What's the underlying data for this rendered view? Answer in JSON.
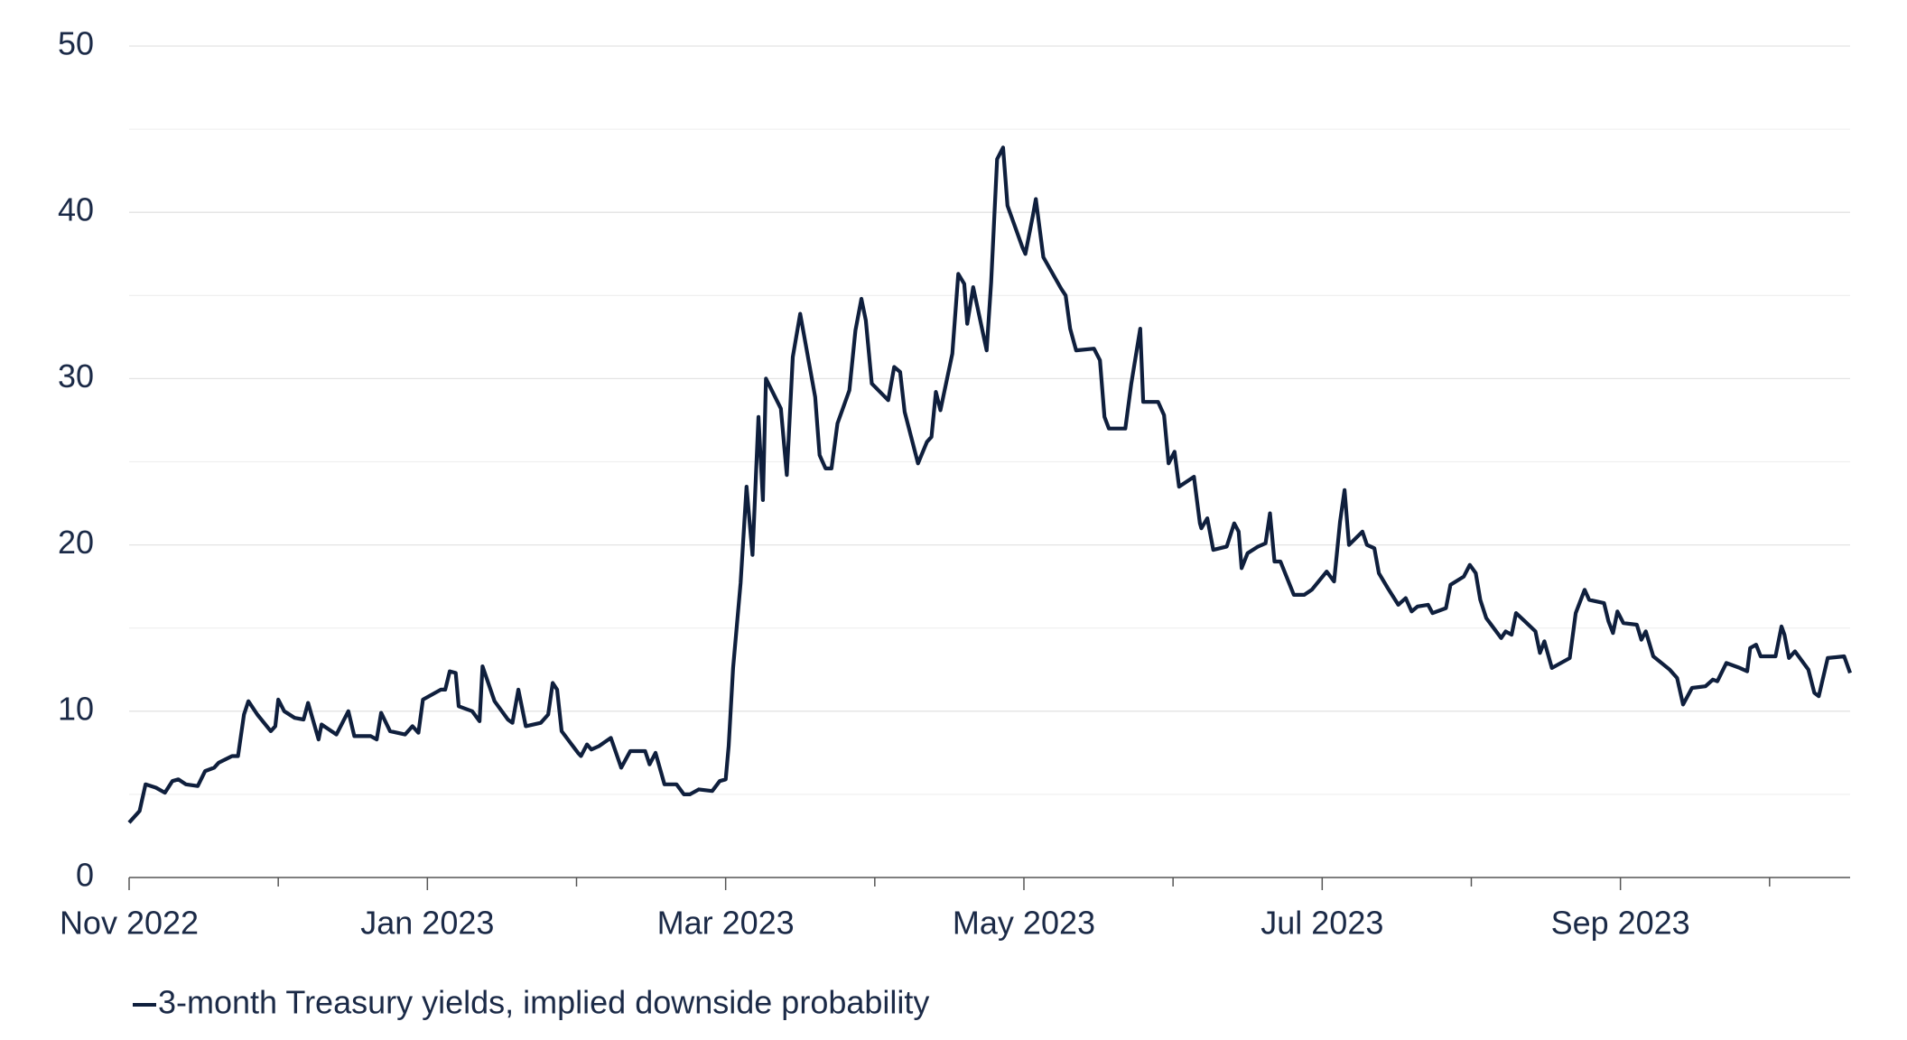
{
  "chart_data": {
    "type": "line",
    "x": [
      0.0,
      0.07,
      0.11,
      0.18,
      0.24,
      0.29,
      0.33,
      0.38,
      0.46,
      0.51,
      0.57,
      0.6,
      0.69,
      0.73,
      0.77,
      0.8,
      0.86,
      0.95,
      0.98,
      1.0,
      1.04,
      1.11,
      1.17,
      1.2,
      1.27,
      1.29,
      1.39,
      1.47,
      1.51,
      1.62,
      1.66,
      1.69,
      1.75,
      1.85,
      1.9,
      1.94,
      1.97,
      2.09,
      2.12,
      2.15,
      2.19,
      2.21,
      2.3,
      2.35,
      2.37,
      2.45,
      2.54,
      2.57,
      2.61,
      2.66,
      2.76,
      2.81,
      2.84,
      2.87,
      2.9,
      3.01,
      3.03,
      3.07,
      3.1,
      3.15,
      3.23,
      3.3,
      3.36,
      3.46,
      3.49,
      3.53,
      3.59,
      3.67,
      3.72,
      3.76,
      3.82,
      3.91,
      3.96,
      4.0,
      4.02,
      4.05,
      4.1,
      4.14,
      4.18,
      4.22,
      4.25,
      4.27,
      4.37,
      4.41,
      4.45,
      4.5,
      4.6,
      4.63,
      4.67,
      4.71,
      4.75,
      4.83,
      4.87,
      4.91,
      4.94,
      4.98,
      5.09,
      5.13,
      5.17,
      5.2,
      5.29,
      5.35,
      5.38,
      5.41,
      5.44,
      5.52,
      5.56,
      5.6,
      5.62,
      5.66,
      5.75,
      5.78,
      5.82,
      5.86,
      5.89,
      5.99,
      6.01,
      6.06,
      6.08,
      6.13,
      6.25,
      6.28,
      6.31,
      6.35,
      6.47,
      6.51,
      6.54,
      6.57,
      6.68,
      6.72,
      6.78,
      6.8,
      6.9,
      6.94,
      6.97,
      7.01,
      7.04,
      7.14,
      7.18,
      7.19,
      7.23,
      7.27,
      7.36,
      7.41,
      7.44,
      7.46,
      7.5,
      7.57,
      7.62,
      7.65,
      7.68,
      7.72,
      7.81,
      7.88,
      7.93,
      8.03,
      8.08,
      8.12,
      8.15,
      8.18,
      8.27,
      8.3,
      8.35,
      8.38,
      8.44,
      8.51,
      8.56,
      8.6,
      8.64,
      8.71,
      8.74,
      8.83,
      8.86,
      8.95,
      8.99,
      9.03,
      9.06,
      9.1,
      9.2,
      9.23,
      9.27,
      9.3,
      9.36,
      9.43,
      9.46,
      9.49,
      9.54,
      9.66,
      9.7,
      9.76,
      9.79,
      9.89,
      9.92,
      9.95,
      9.98,
      10.02,
      10.11,
      10.14,
      10.17,
      10.22,
      10.33,
      10.38,
      10.42,
      10.48,
      10.57,
      10.62,
      10.65,
      10.71,
      10.8,
      10.85,
      10.87,
      10.91,
      10.94,
      11.04,
      11.08,
      11.1,
      11.13,
      11.17,
      11.26,
      11.3,
      11.33,
      11.39,
      11.5,
      11.54
    ],
    "series": [
      {
        "name": "3-month Treasury yields, implied downside probability",
        "color": "#0f1f3d",
        "values": [
          3.3,
          4.0,
          5.6,
          5.4,
          5.1,
          5.8,
          5.9,
          5.6,
          5.5,
          6.4,
          6.6,
          6.9,
          7.3,
          7.3,
          9.8,
          10.6,
          9.8,
          8.8,
          9.1,
          10.7,
          10.0,
          9.6,
          9.5,
          10.5,
          8.3,
          9.2,
          8.6,
          10.0,
          8.5,
          8.5,
          8.3,
          9.9,
          8.8,
          8.6,
          9.1,
          8.7,
          10.7,
          11.3,
          11.3,
          12.4,
          12.3,
          10.3,
          10.0,
          9.4,
          12.7,
          10.6,
          9.5,
          9.3,
          11.3,
          9.1,
          9.3,
          9.8,
          11.7,
          11.3,
          8.8,
          7.5,
          7.3,
          8.0,
          7.7,
          7.9,
          8.4,
          6.6,
          7.6,
          7.6,
          6.8,
          7.5,
          5.6,
          5.6,
          5.0,
          5.0,
          5.3,
          5.2,
          5.8,
          5.9,
          7.9,
          12.6,
          17.7,
          23.5,
          19.4,
          27.7,
          22.7,
          30.0,
          28.2,
          24.2,
          31.3,
          33.9,
          28.9,
          25.4,
          24.6,
          24.6,
          27.3,
          29.3,
          32.9,
          34.8,
          33.5,
          29.7,
          28.7,
          30.7,
          30.4,
          28.0,
          24.9,
          26.2,
          26.5,
          29.2,
          28.1,
          31.5,
          36.3,
          35.7,
          33.3,
          35.5,
          31.7,
          35.8,
          43.2,
          43.9,
          40.4,
          37.9,
          37.5,
          39.8,
          40.8,
          37.3,
          35.4,
          35.0,
          33.0,
          31.7,
          31.8,
          31.1,
          27.7,
          27.0,
          27.0,
          29.7,
          33.0,
          28.6,
          28.6,
          27.8,
          24.9,
          25.6,
          23.5,
          24.1,
          21.3,
          21.0,
          21.6,
          19.7,
          19.9,
          21.3,
          20.8,
          18.6,
          19.5,
          19.9,
          20.1,
          21.9,
          19.0,
          19.0,
          17.0,
          17.0,
          17.3,
          18.4,
          17.8,
          21.4,
          23.3,
          20.0,
          20.8,
          20.0,
          19.8,
          18.3,
          17.4,
          16.4,
          16.8,
          16.0,
          16.3,
          16.4,
          15.9,
          16.2,
          17.6,
          18.1,
          18.8,
          18.3,
          16.7,
          15.6,
          14.4,
          14.8,
          14.6,
          15.9,
          15.4,
          14.8,
          13.5,
          14.2,
          12.6,
          13.2,
          15.9,
          17.3,
          16.7,
          16.5,
          15.4,
          14.7,
          16.0,
          15.3,
          15.2,
          14.3,
          14.8,
          13.3,
          12.5,
          12.0,
          10.4,
          11.4,
          11.5,
          11.9,
          11.8,
          12.9,
          12.6,
          12.4,
          13.8,
          14.0,
          13.3,
          13.3,
          15.1,
          14.6,
          13.2,
          13.6,
          12.5,
          11.1,
          10.9,
          13.2,
          13.3,
          12.3
        ]
      }
    ],
    "xlim": [
      0,
      11.54
    ],
    "xticks": [
      {
        "value": 0,
        "label": "Nov 2022"
      },
      {
        "value": 2,
        "label": "Jan 2023"
      },
      {
        "value": 4,
        "label": "Mar 2023"
      },
      {
        "value": 6,
        "label": "May 2023"
      },
      {
        "value": 8,
        "label": "Jul 2023"
      },
      {
        "value": 10,
        "label": "Sep 2023"
      }
    ],
    "xminorticks": [
      1,
      3,
      5,
      7,
      9,
      11
    ],
    "ylim": [
      0,
      50
    ],
    "yticks": [
      0,
      10,
      20,
      30,
      40,
      50
    ],
    "yminorticks": [
      5,
      15,
      25,
      35,
      45
    ],
    "grid": true,
    "legend": "bottom-left"
  }
}
